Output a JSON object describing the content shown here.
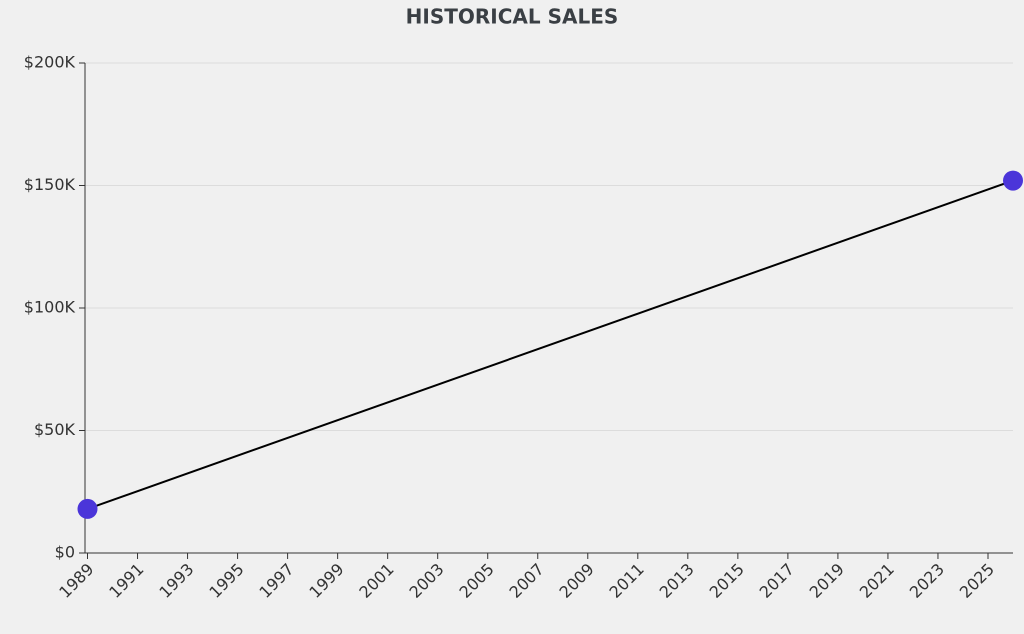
{
  "chart_data": {
    "type": "line",
    "title": "HISTORICAL SALES",
    "x": [
      1989,
      2026
    ],
    "values": [
      18000,
      152000
    ],
    "color": "#4b35d9",
    "line_color": "#000000",
    "xlim": [
      1988.9,
      2026
    ],
    "xticks": [
      1989,
      1991,
      1993,
      1995,
      1997,
      1999,
      2001,
      2003,
      2005,
      2007,
      2009,
      2011,
      2013,
      2015,
      2017,
      2019,
      2021,
      2023,
      2025
    ],
    "ylim": [
      0,
      200000
    ],
    "yticks": [
      {
        "value": 0,
        "label": "$0"
      },
      {
        "value": 50000,
        "label": "$50K"
      },
      {
        "value": 100000,
        "label": "$100K"
      },
      {
        "value": 150000,
        "label": "$150K"
      },
      {
        "value": 200000,
        "label": "$200K"
      }
    ],
    "grid": true
  }
}
